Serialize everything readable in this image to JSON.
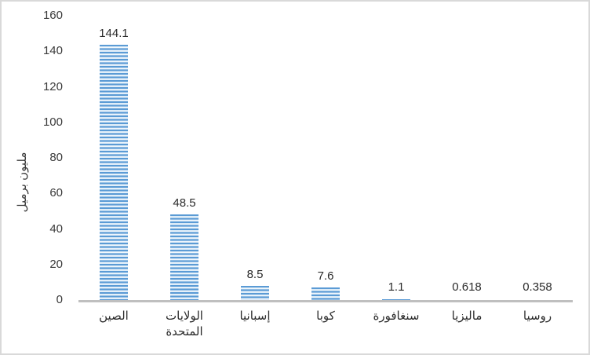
{
  "window": {
    "background": "#ffffff",
    "border_color": "#d9d9d9"
  },
  "chart_data": {
    "type": "bar",
    "title": "",
    "xlabel": "",
    "ylabel": "مليون برميل",
    "categories": [
      "الصين",
      "الولايات\nالمتحدة",
      "إسبانيا",
      "كوبا",
      "سنغافورة",
      "ماليزيا",
      "روسيا"
    ],
    "values": [
      144.1,
      48.5,
      8.5,
      7.6,
      1.1,
      0.618,
      0.358
    ],
    "value_labels": [
      "144.1",
      "48.5",
      "8.5",
      "7.6",
      "1.1",
      "0.618",
      "0.358"
    ],
    "ylim": [
      0,
      160
    ],
    "ytick_step": 20,
    "ytick_labels": [
      "0",
      "20",
      "40",
      "60",
      "80",
      "100",
      "120",
      "140",
      "160"
    ],
    "grid": false,
    "legend": null,
    "bar_color": "#5b9bd5",
    "bar_stripe_light": "#f2f8fd",
    "axis_line_color": "#bfbfbf",
    "text_color": "#3b3b3b"
  }
}
